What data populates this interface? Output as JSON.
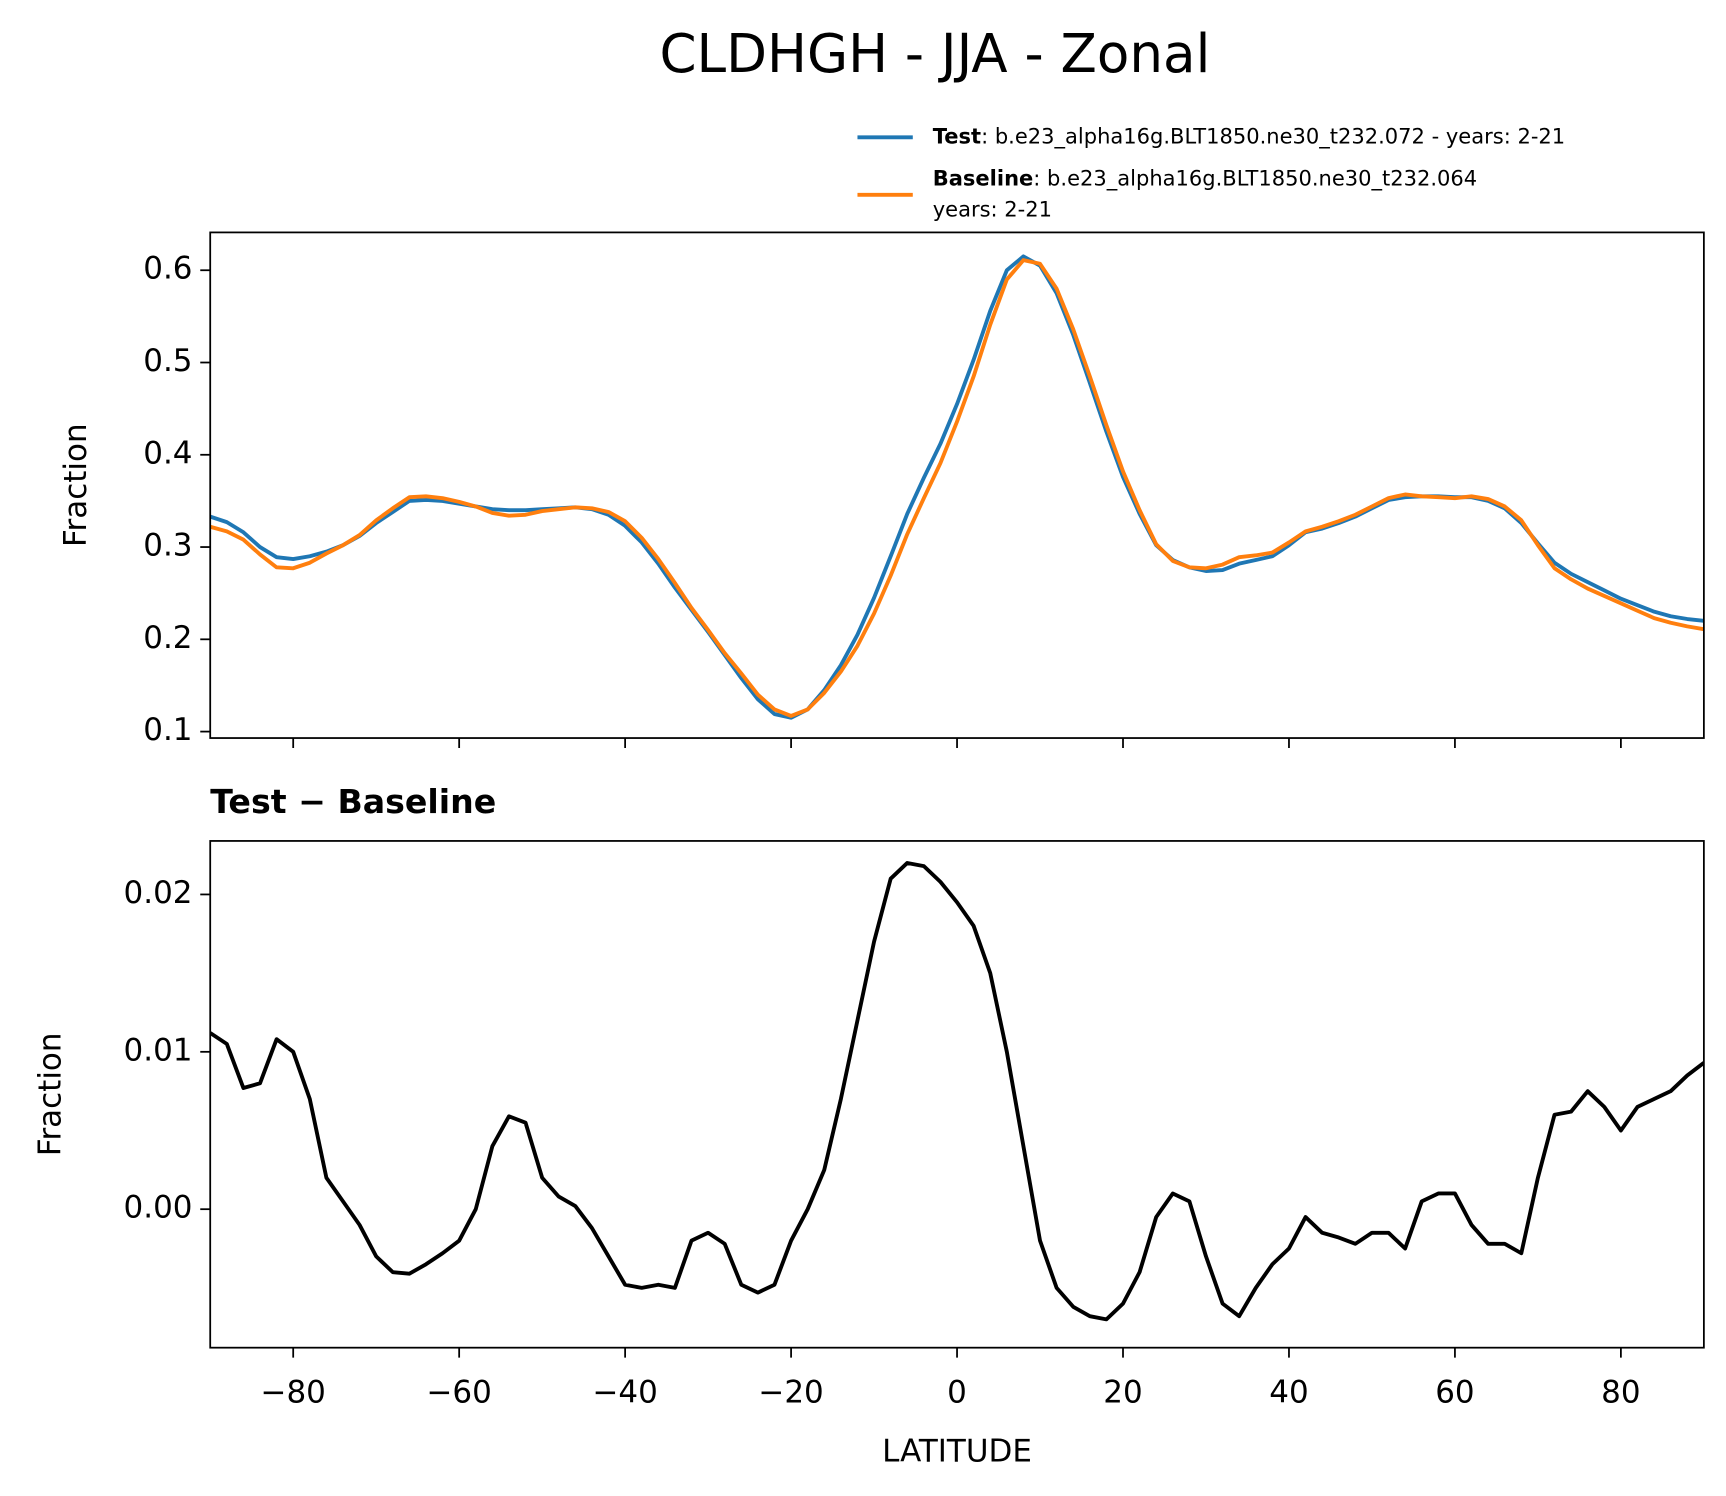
{
  "title": "CLDHGH - JJA - Zonal",
  "chart_data": [
    {
      "type": "line",
      "ylabel": "Fraction",
      "x": [
        -90,
        -88,
        -86,
        -84,
        -82,
        -80,
        -78,
        -76,
        -74,
        -72,
        -70,
        -68,
        -66,
        -64,
        -62,
        -60,
        -58,
        -56,
        -54,
        -52,
        -50,
        -48,
        -46,
        -44,
        -42,
        -40,
        -38,
        -36,
        -34,
        -32,
        -30,
        -28,
        -26,
        -24,
        -22,
        -20,
        -18,
        -16,
        -14,
        -12,
        -10,
        -8,
        -6,
        -4,
        -2,
        0,
        2,
        4,
        6,
        8,
        10,
        12,
        14,
        16,
        18,
        20,
        22,
        24,
        26,
        28,
        30,
        32,
        34,
        36,
        38,
        40,
        42,
        44,
        46,
        48,
        50,
        52,
        54,
        56,
        58,
        60,
        62,
        64,
        66,
        68,
        70,
        72,
        74,
        76,
        78,
        80,
        82,
        84,
        86,
        88,
        90
      ],
      "series": [
        {
          "name": "Test",
          "description": [
            ": b.e23_alpha16g.BLT1850.ne30_t232.072 - years: 2-21"
          ],
          "color": "#1f77b4",
          "values": [
            0.333,
            0.327,
            0.316,
            0.3,
            0.289,
            0.287,
            0.29,
            0.295,
            0.302,
            0.312,
            0.326,
            0.338,
            0.35,
            0.351,
            0.35,
            0.347,
            0.344,
            0.341,
            0.34,
            0.34,
            0.341,
            0.342,
            0.343,
            0.341,
            0.335,
            0.323,
            0.305,
            0.282,
            0.256,
            0.232,
            0.208,
            0.183,
            0.158,
            0.135,
            0.119,
            0.115,
            0.124,
            0.145,
            0.172,
            0.205,
            0.245,
            0.29,
            0.336,
            0.375,
            0.412,
            0.455,
            0.503,
            0.556,
            0.6,
            0.615,
            0.605,
            0.575,
            0.53,
            0.478,
            0.425,
            0.376,
            0.336,
            0.302,
            0.286,
            0.278,
            0.274,
            0.275,
            0.282,
            0.286,
            0.29,
            0.302,
            0.316,
            0.32,
            0.326,
            0.333,
            0.342,
            0.351,
            0.354,
            0.355,
            0.355,
            0.354,
            0.354,
            0.35,
            0.342,
            0.326,
            0.304,
            0.283,
            0.271,
            0.262,
            0.253,
            0.244,
            0.237,
            0.23,
            0.225,
            0.222,
            0.22
          ]
        },
        {
          "name": "Baseline",
          "description": [
            ": b.e23_alpha16g.BLT1850.ne30_t232.064",
            "years: 2-21"
          ],
          "color": "#ff7f0e",
          "values": [
            0.322,
            0.317,
            0.308,
            0.292,
            0.278,
            0.277,
            0.283,
            0.293,
            0.302,
            0.313,
            0.329,
            0.342,
            0.354,
            0.355,
            0.353,
            0.349,
            0.344,
            0.337,
            0.334,
            0.335,
            0.339,
            0.341,
            0.343,
            0.342,
            0.338,
            0.328,
            0.31,
            0.287,
            0.261,
            0.234,
            0.21,
            0.185,
            0.163,
            0.14,
            0.124,
            0.117,
            0.124,
            0.142,
            0.165,
            0.193,
            0.228,
            0.269,
            0.314,
            0.353,
            0.391,
            0.436,
            0.485,
            0.541,
            0.59,
            0.611,
            0.607,
            0.58,
            0.536,
            0.485,
            0.432,
            0.382,
            0.34,
            0.303,
            0.285,
            0.278,
            0.277,
            0.281,
            0.289,
            0.291,
            0.294,
            0.305,
            0.317,
            0.322,
            0.328,
            0.335,
            0.344,
            0.353,
            0.357,
            0.355,
            0.354,
            0.353,
            0.355,
            0.352,
            0.344,
            0.329,
            0.302,
            0.277,
            0.265,
            0.255,
            0.247,
            0.239,
            0.231,
            0.223,
            0.218,
            0.214,
            0.211
          ]
        }
      ],
      "xlim": [
        -90,
        90
      ],
      "xticks": [
        -80,
        -60,
        -40,
        -20,
        0,
        20,
        40,
        60,
        80
      ],
      "ylim": [
        0.093,
        0.641
      ],
      "yticks": [
        0.1,
        0.2,
        0.3,
        0.4,
        0.5,
        0.6
      ],
      "legend": "upper right"
    },
    {
      "type": "line",
      "title": "Test − Baseline",
      "xlabel": "LATITUDE",
      "ylabel": "Fraction",
      "x": [
        -90,
        -88,
        -86,
        -84,
        -82,
        -80,
        -78,
        -76,
        -74,
        -72,
        -70,
        -68,
        -66,
        -64,
        -62,
        -60,
        -58,
        -56,
        -54,
        -52,
        -50,
        -48,
        -46,
        -44,
        -42,
        -40,
        -38,
        -36,
        -34,
        -32,
        -30,
        -28,
        -26,
        -24,
        -22,
        -20,
        -18,
        -16,
        -14,
        -12,
        -10,
        -8,
        -6,
        -4,
        -2,
        0,
        2,
        4,
        6,
        8,
        10,
        12,
        14,
        16,
        18,
        20,
        22,
        24,
        26,
        28,
        30,
        32,
        34,
        36,
        38,
        40,
        42,
        44,
        46,
        48,
        50,
        52,
        54,
        56,
        58,
        60,
        62,
        64,
        66,
        68,
        70,
        72,
        74,
        76,
        78,
        80,
        82,
        84,
        86,
        88,
        90
      ],
      "series": [
        {
          "color": "#000000",
          "values": [
            0.0112,
            0.0105,
            0.0077,
            0.008,
            0.0108,
            0.01,
            0.007,
            0.002,
            0.0005,
            -0.001,
            -0.003,
            -0.004,
            -0.0041,
            -0.0035,
            -0.0028,
            -0.002,
            0.0,
            0.004,
            0.0059,
            0.0055,
            0.002,
            0.0008,
            0.0002,
            -0.0012,
            -0.003,
            -0.0048,
            -0.005,
            -0.0048,
            -0.005,
            -0.002,
            -0.0015,
            -0.0022,
            -0.0048,
            -0.0053,
            -0.0048,
            -0.002,
            0.0,
            0.0025,
            0.007,
            0.012,
            0.017,
            0.021,
            0.022,
            0.0218,
            0.0208,
            0.0195,
            0.018,
            0.015,
            0.01,
            0.004,
            -0.002,
            -0.005,
            -0.0062,
            -0.0068,
            -0.007,
            -0.006,
            -0.004,
            -0.0005,
            0.001,
            0.0005,
            -0.003,
            -0.006,
            -0.0068,
            -0.005,
            -0.0035,
            -0.0025,
            -0.0005,
            -0.0015,
            -0.0018,
            -0.0022,
            -0.0015,
            -0.0015,
            -0.0025,
            0.0005,
            0.001,
            0.001,
            -0.001,
            -0.0022,
            -0.0022,
            -0.0028,
            0.002,
            0.006,
            0.0062,
            0.0075,
            0.0065,
            0.005,
            0.0065,
            0.007,
            0.0075,
            0.0085,
            0.0093
          ]
        }
      ],
      "xlim": [
        -90,
        90
      ],
      "xticks": [
        {
          "value": -80,
          "label": "−80"
        },
        {
          "value": -60,
          "label": "−60"
        },
        {
          "value": -40,
          "label": "−40"
        },
        {
          "value": -20,
          "label": "−20"
        },
        0,
        20,
        40,
        60,
        80
      ],
      "ylim": [
        -0.0088,
        0.0234
      ],
      "yticks": [
        {
          "value": 0,
          "label": "0.00"
        },
        {
          "value": 0.01,
          "label": "0.01"
        },
        {
          "value": 0.02,
          "label": "0.02"
        }
      ]
    }
  ]
}
